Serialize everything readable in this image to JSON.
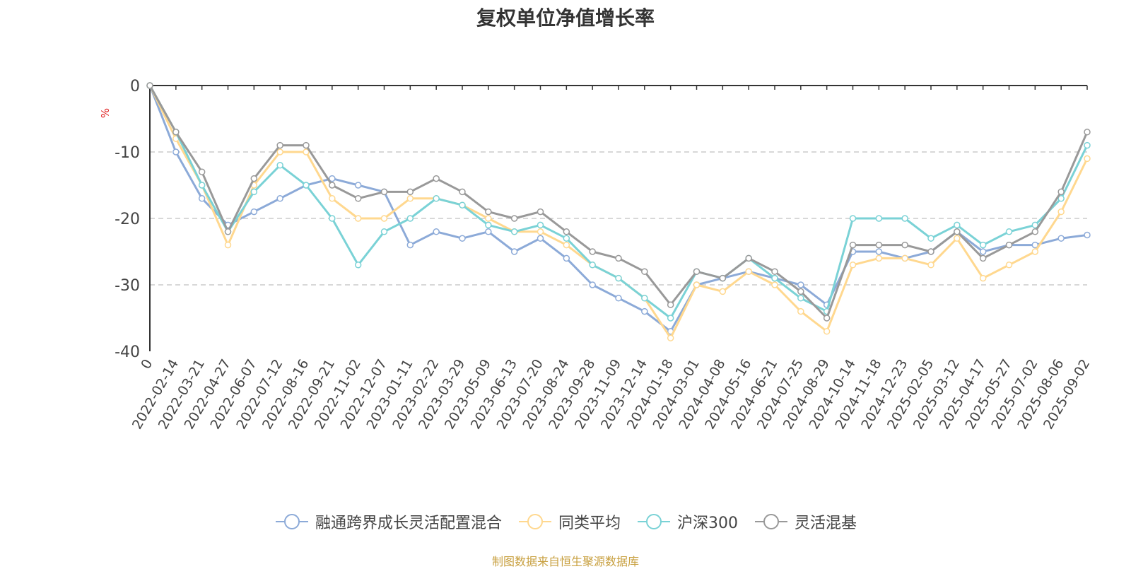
{
  "chart_data": {
    "type": "line",
    "title": "复权单位净值增长率",
    "ylabel": "%",
    "ylim": [
      -40,
      0
    ],
    "yticks": [
      0,
      -10,
      -20,
      -30,
      -40
    ],
    "grid": true,
    "legend_position": "bottom",
    "source_note": "制图数据来自恒生聚源数据库",
    "x_tick_labels": [
      "0",
      "2022-02-14",
      "2022-03-21",
      "2022-04-27",
      "2022-06-07",
      "2022-07-12",
      "2022-08-16",
      "2022-09-21",
      "2022-11-02",
      "2022-12-07",
      "2023-01-11",
      "2023-02-22",
      "2023-03-29",
      "2023-05-09",
      "2023-06-13",
      "2023-07-20",
      "2023-08-24",
      "2023-09-28",
      "2023-11-09",
      "2023-12-14",
      "2024-01-18",
      "2024-03-01",
      "2024-04-08",
      "2024-05-16",
      "2024-06-21",
      "2024-07-25",
      "2024-08-29",
      "2024-10-14",
      "2024-11-18",
      "2024-12-23",
      "2025-02-05",
      "2025-03-12",
      "2025-04-17",
      "2025-05-27",
      "2025-07-02",
      "2025-08-06",
      "2025-09-02"
    ],
    "series": [
      {
        "name": "融通跨界成长灵活配置混合",
        "color": "#8caad8",
        "values": [
          0,
          -10,
          -17,
          -21,
          -19,
          -17,
          -15,
          -14,
          -15,
          -16,
          -24,
          -22,
          -23,
          -22,
          -25,
          -23,
          -26,
          -30,
          -32,
          -34,
          -37,
          -30,
          -29,
          -28,
          -29,
          -30,
          -33,
          -25,
          -25,
          -26,
          -25,
          -22,
          -25,
          -24,
          -24,
          -23,
          -22.5
        ]
      },
      {
        "name": "同类平均",
        "color": "#ffd88f",
        "values": [
          0,
          -8,
          -15,
          -24,
          -15,
          -10,
          -10,
          -17,
          -20,
          -20,
          -17,
          -17,
          -18,
          -20,
          -22,
          -22,
          -24,
          -27,
          -29,
          -32,
          -38,
          -30,
          -31,
          -28,
          -30,
          -34,
          -37,
          -27,
          -26,
          -26,
          -27,
          -23,
          -29,
          -27,
          -25,
          -19,
          -11
        ]
      },
      {
        "name": "沪深300",
        "color": "#7ad2d6",
        "values": [
          0,
          -7,
          -15,
          -22,
          -16,
          -12,
          -15,
          -20,
          -27,
          -22,
          -20,
          -17,
          -18,
          -21,
          -22,
          -21,
          -23,
          -27,
          -29,
          -32,
          -35,
          -28,
          -29,
          -26,
          -29,
          -32,
          -34,
          -20,
          -20,
          -20,
          -23,
          -21,
          -24,
          -22,
          -21,
          -17,
          -9
        ]
      },
      {
        "name": "灵活混基",
        "color": "#999999",
        "values": [
          0,
          -7,
          -13,
          -22,
          -14,
          -9,
          -9,
          -15,
          -17,
          -16,
          -16,
          -14,
          -16,
          -19,
          -20,
          -19,
          -22,
          -25,
          -26,
          -28,
          -33,
          -28,
          -29,
          -26,
          -28,
          -31,
          -35,
          -24,
          -24,
          -24,
          -25,
          -22,
          -26,
          -24,
          -22,
          -16,
          -7
        ]
      }
    ]
  }
}
